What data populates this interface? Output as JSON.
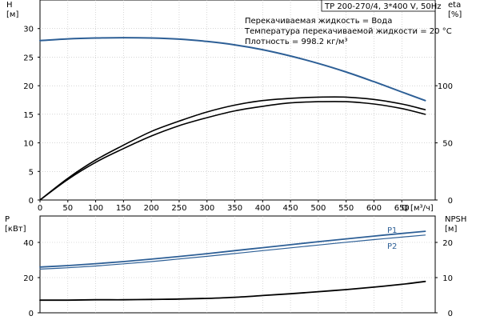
{
  "title_box": "TP 200-270/4, 3*400 V, 50Hz",
  "info_lines": [
    "Перекачиваемая жидкость = Вода",
    "Температура перекачиваемой жидкости = 20 °C",
    "Плотность = 998.2 кг/м³"
  ],
  "colors": {
    "blue": "#2d5f96",
    "black": "#000000",
    "grid": "#bdbdbd"
  },
  "chart_data": [
    {
      "type": "line",
      "panel": "top",
      "xlabel": "Q [м³/ч]",
      "ylabel_left": [
        "H",
        "[м]"
      ],
      "ylabel_right": [
        "eta",
        "[%]"
      ],
      "xlim": [
        0,
        710
      ],
      "ylim_left": [
        0,
        35
      ],
      "ylim_right": [
        0,
        175
      ],
      "xticks": [
        "0",
        "50",
        "100",
        "150",
        "200",
        "250",
        "300",
        "350",
        "400",
        "450",
        "500",
        "550",
        "600",
        "650"
      ],
      "yticks_left": [
        "0",
        "5",
        "10",
        "15",
        "20",
        "25",
        "30"
      ],
      "yticks_right": [
        "0",
        "50",
        "100"
      ],
      "grid": true,
      "series": [
        {
          "axis": "left",
          "color": "#2d5f96",
          "x": [
            0,
            50,
            100,
            150,
            200,
            250,
            300,
            350,
            400,
            450,
            500,
            550,
            600,
            650,
            692
          ],
          "y": [
            27.9,
            28.2,
            28.35,
            28.4,
            28.35,
            28.15,
            27.75,
            27.15,
            26.3,
            25.2,
            23.9,
            22.4,
            20.7,
            18.9,
            17.4
          ]
        },
        {
          "axis": "right",
          "x": [
            0,
            50,
            100,
            150,
            200,
            250,
            300,
            350,
            400,
            450,
            500,
            550,
            600,
            650,
            692
          ],
          "y": [
            0,
            19,
            35,
            48,
            60,
            69,
            77,
            83,
            87,
            89,
            90,
            90,
            88,
            84,
            79
          ]
        },
        {
          "axis": "right",
          "x": [
            0,
            50,
            100,
            150,
            200,
            250,
            300,
            350,
            400,
            450,
            500,
            550,
            600,
            650,
            692
          ],
          "y": [
            0,
            18,
            33,
            45,
            56,
            65,
            72,
            78,
            82,
            85,
            86,
            86,
            84,
            80,
            75
          ]
        }
      ]
    },
    {
      "type": "line",
      "panel": "bottom",
      "xlim": [
        0,
        710
      ],
      "ylabel_left": [
        "P",
        "[кВт]"
      ],
      "ylabel_right": [
        "NPSH",
        "[м]"
      ],
      "ylim_left": [
        0,
        55
      ],
      "ylim_right": [
        0,
        27.5
      ],
      "yticks_left": [
        "0",
        "20",
        "40"
      ],
      "yticks_right": [
        "0",
        "10",
        "20"
      ],
      "grid": true,
      "series": [
        {
          "name": "P1",
          "axis": "left",
          "color": "#2d5f96",
          "x": [
            0,
            50,
            100,
            150,
            200,
            250,
            300,
            350,
            400,
            450,
            500,
            550,
            600,
            650,
            692
          ],
          "y": [
            26.0,
            26.8,
            27.9,
            29.1,
            30.5,
            32.0,
            33.6,
            35.3,
            37.0,
            38.7,
            40.4,
            42.0,
            43.6,
            45.1,
            46.3
          ]
        },
        {
          "name": "P2",
          "axis": "left",
          "color": "#2d5f96",
          "x": [
            0,
            50,
            100,
            150,
            200,
            250,
            300,
            350,
            400,
            450,
            500,
            550,
            600,
            650,
            692
          ],
          "y": [
            24.8,
            25.6,
            26.6,
            27.8,
            29.1,
            30.6,
            32.1,
            33.7,
            35.3,
            36.9,
            38.5,
            40.1,
            41.6,
            43.0,
            44.2
          ]
        },
        {
          "axis": "right",
          "color": "#000000",
          "x": [
            0,
            50,
            100,
            150,
            200,
            250,
            300,
            350,
            400,
            450,
            500,
            550,
            600,
            650,
            692
          ],
          "y": [
            3.6,
            3.6,
            3.7,
            3.7,
            3.8,
            3.9,
            4.1,
            4.4,
            4.9,
            5.4,
            6.0,
            6.6,
            7.3,
            8.1,
            8.9
          ]
        }
      ]
    }
  ]
}
